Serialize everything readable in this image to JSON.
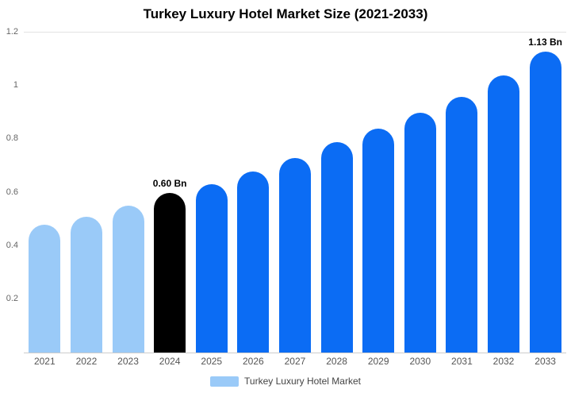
{
  "title": "Turkey Luxury Hotel Market Size (2021-2033)",
  "legend": {
    "label": "Turkey Luxury Hotel Market",
    "swatch_color": "#9ACAF8"
  },
  "colors": {
    "light_blue": "#9ACAF8",
    "blue": "#0B6CF4",
    "black": "#000000"
  },
  "chart_data": {
    "type": "bar",
    "title": "Turkey Luxury Hotel Market Size (2021-2033)",
    "categories": [
      "2021",
      "2022",
      "2023",
      "2024",
      "2025",
      "2026",
      "2027",
      "2028",
      "2029",
      "2030",
      "2031",
      "2032",
      "2033"
    ],
    "values": [
      0.48,
      0.51,
      0.55,
      0.6,
      0.63,
      0.68,
      0.73,
      0.79,
      0.84,
      0.9,
      0.96,
      1.04,
      1.13
    ],
    "bar_colors": [
      "#9ACAF8",
      "#9ACAF8",
      "#9ACAF8",
      "#000000",
      "#0B6CF4",
      "#0B6CF4",
      "#0B6CF4",
      "#0B6CF4",
      "#0B6CF4",
      "#0B6CF4",
      "#0B6CF4",
      "#0B6CF4",
      "#0B6CF4"
    ],
    "annotations": [
      {
        "index": 3,
        "text": "0.60 Bn"
      },
      {
        "index": 12,
        "text": "1.13 Bn"
      }
    ],
    "xlabel": "",
    "ylabel": "",
    "ylim": [
      0,
      1.2
    ],
    "yticks": [
      "0.2",
      "0.4",
      "0.6",
      "0.8",
      "1",
      "1.2"
    ],
    "grid": false,
    "legend_position": "bottom",
    "unit": "Bn"
  }
}
